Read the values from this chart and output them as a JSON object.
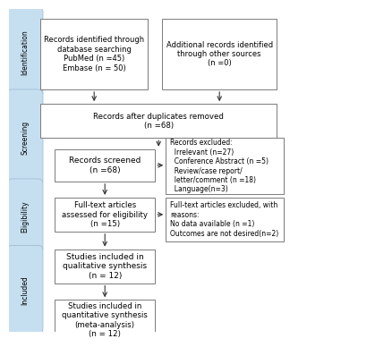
{
  "bg_color": "#ffffff",
  "box_color": "#ffffff",
  "box_edge_color": "#7a7a7a",
  "side_label_bg": "#c5dff0",
  "side_label_edge": "#9ab8cc",
  "side_label_text_color": "#000000",
  "arrow_color": "#333333",
  "text_color": "#000000",
  "side_labels": [
    "Identification",
    "Screening",
    "Eligibility",
    "Included"
  ],
  "box1_text": "Records identified through\ndatabase searching\nPubMed (n =45)\nEmbase (n = 50)",
  "box2_text": "Additional records identified\nthrough other sources\n(n =0)",
  "box3_text": "Records after duplicates removed\n(n =68)",
  "box4_text": "Records screened\n(n =68)",
  "box5_text": "Full-text articles\nassessed for eligibility\n(n =15)",
  "box6_text": "Studies included in\nqualitative synthesis\n(n = 12)",
  "box7_text": "Studies included in\nquantitative synthesis\n(meta-analysis)\n(n = 12)",
  "excl1_text": "Records excluded:\n  Irrelevant (n=27)\n  Conference Abstract (n =5)\n  Review/case report/\n  letter/comment (n =18)\n  Language(n=3)",
  "excl2_text": "Full-text articles excluded, with\nreasons:\nNo data available (n =1)\nOutcomes are not desired(n=2)"
}
